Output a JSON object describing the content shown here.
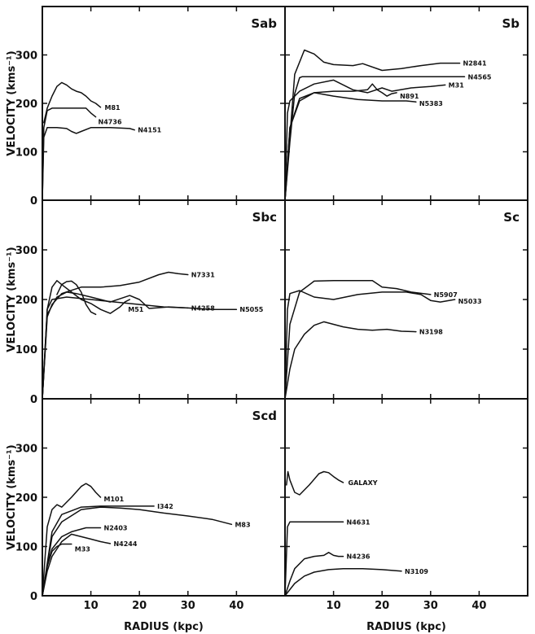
{
  "chart_data": [
    {
      "type": "line",
      "title": "Sab",
      "xlabel": "",
      "ylabel": "VELOCITY (kms⁻¹)",
      "xlim": [
        0,
        50
      ],
      "ylim": [
        0,
        400
      ],
      "yticks": [
        0,
        100,
        200,
        300
      ],
      "xticks": [],
      "series": [
        {
          "name": "M81",
          "x": [
            0.3,
            1,
            2,
            3,
            4,
            5,
            6,
            7,
            8,
            9,
            10,
            11,
            12
          ],
          "y": [
            160,
            190,
            215,
            235,
            243,
            238,
            230,
            225,
            222,
            215,
            205,
            200,
            192
          ]
        },
        {
          "name": "N4736",
          "x": [
            0,
            0.3,
            1,
            2,
            3,
            6,
            9,
            10,
            11
          ],
          "y": [
            0,
            150,
            185,
            190,
            190,
            190,
            190,
            180,
            172
          ]
        },
        {
          "name": "N4151",
          "x": [
            0,
            0.3,
            1,
            3,
            5,
            6,
            7,
            8,
            10,
            14,
            18,
            19
          ],
          "y": [
            0,
            130,
            150,
            150,
            148,
            142,
            138,
            142,
            150,
            150,
            148,
            145
          ]
        }
      ]
    },
    {
      "type": "line",
      "title": "Sb",
      "xlabel": "",
      "ylabel": "",
      "xlim": [
        0,
        50
      ],
      "ylim": [
        0,
        400
      ],
      "yticks": [
        0,
        100,
        200,
        300
      ],
      "xticks": [],
      "series": [
        {
          "name": "N2841",
          "x": [
            0,
            2,
            4,
            6,
            8,
            10,
            14,
            16,
            20,
            24,
            28,
            32,
            36
          ],
          "y": [
            0,
            260,
            310,
            302,
            285,
            280,
            278,
            282,
            268,
            272,
            278,
            283,
            283
          ]
        },
        {
          "name": "N4565",
          "x": [
            0,
            1,
            2,
            3,
            3.5,
            20,
            37
          ],
          "y": [
            0,
            120,
            220,
            253,
            255,
            255,
            255
          ]
        },
        {
          "name": "M31",
          "x": [
            0,
            0.5,
            1,
            3,
            6,
            10,
            14,
            17,
            20,
            22,
            26,
            30,
            33
          ],
          "y": [
            0,
            180,
            205,
            225,
            240,
            248,
            228,
            222,
            232,
            225,
            232,
            235,
            238
          ]
        },
        {
          "name": "N891",
          "x": [
            0,
            1,
            3,
            6,
            10,
            14,
            17,
            18,
            19,
            20,
            21,
            22,
            23
          ],
          "y": [
            0,
            150,
            205,
            222,
            225,
            225,
            228,
            240,
            228,
            222,
            215,
            220,
            222
          ]
        },
        {
          "name": "N5383",
          "x": [
            0,
            1,
            3,
            6,
            10,
            15,
            20,
            25,
            27
          ],
          "y": [
            0,
            150,
            210,
            222,
            215,
            208,
            205,
            205,
            203
          ]
        }
      ]
    },
    {
      "type": "line",
      "title": "Sbc",
      "xlabel": "",
      "ylabel": "VELOCITY (kms⁻¹)",
      "xlim": [
        0,
        50
      ],
      "ylim": [
        0,
        400
      ],
      "yticks": [
        0,
        100,
        200,
        300
      ],
      "xticks": [],
      "series": [
        {
          "name": "N7331",
          "x": [
            0,
            1,
            2,
            4,
            8,
            12,
            16,
            20,
            24,
            26,
            28,
            30
          ],
          "y": [
            0,
            165,
            190,
            212,
            225,
            225,
            228,
            235,
            250,
            255,
            252,
            250
          ]
        },
        {
          "name": "N4258",
          "x": [
            0,
            1,
            3,
            5,
            7,
            10,
            14,
            18,
            20,
            22,
            26,
            30
          ],
          "y": [
            0,
            170,
            205,
            215,
            212,
            205,
            195,
            208,
            200,
            182,
            185,
            183
          ]
        },
        {
          "name": "N5055",
          "x": [
            0,
            1,
            2,
            5,
            10,
            15,
            20,
            25,
            30,
            35,
            40
          ],
          "y": [
            0,
            180,
            200,
            205,
            200,
            195,
            190,
            185,
            183,
            180,
            180
          ]
        },
        {
          "name": "M51",
          "x": [
            0,
            1,
            2,
            3,
            4,
            6,
            8,
            10,
            12,
            14,
            16,
            17,
            18
          ],
          "y": [
            0,
            180,
            225,
            238,
            230,
            215,
            200,
            192,
            180,
            172,
            185,
            195,
            200
          ]
        },
        {
          "name": "",
          "x": [
            3,
            4,
            5,
            6,
            7,
            8,
            9,
            10,
            11
          ],
          "y": [
            210,
            230,
            236,
            237,
            230,
            215,
            190,
            175,
            170
          ]
        }
      ]
    },
    {
      "type": "line",
      "title": "Sc",
      "xlabel": "",
      "ylabel": "",
      "xlim": [
        0,
        50
      ],
      "ylim": [
        0,
        400
      ],
      "yticks": [
        0,
        100,
        200,
        300
      ],
      "xticks": [],
      "series": [
        {
          "name": "N5907",
          "x": [
            0,
            1,
            3,
            6,
            10,
            14,
            18,
            20,
            23,
            26,
            30
          ],
          "y": [
            0,
            150,
            215,
            237,
            238,
            238,
            238,
            225,
            222,
            215,
            210
          ]
        },
        {
          "name": "N5033",
          "x": [
            0,
            0.5,
            1,
            3,
            6,
            10,
            15,
            20,
            25,
            28,
            30,
            32,
            35
          ],
          "y": [
            0,
            180,
            212,
            218,
            205,
            200,
            210,
            215,
            215,
            210,
            198,
            195,
            200
          ]
        },
        {
          "name": "N3198",
          "x": [
            0,
            1,
            2,
            4,
            6,
            8,
            10,
            12,
            15,
            18,
            21,
            24,
            27
          ],
          "y": [
            0,
            60,
            100,
            130,
            148,
            155,
            150,
            145,
            140,
            138,
            140,
            136,
            135
          ]
        }
      ]
    },
    {
      "type": "line",
      "title": "Scd",
      "xlabel": "RADIUS (kpc)",
      "ylabel": "VELOCITY (kms⁻¹)",
      "xlim": [
        0,
        50
      ],
      "ylim": [
        0,
        400
      ],
      "yticks": [
        0,
        100,
        200,
        300
      ],
      "xticks": [
        10,
        20,
        30,
        40
      ],
      "series": [
        {
          "name": "M101",
          "x": [
            0,
            1,
            2,
            3,
            4,
            6,
            8,
            9,
            10,
            11,
            12
          ],
          "y": [
            0,
            140,
            175,
            185,
            180,
            200,
            222,
            228,
            222,
            210,
            200
          ]
        },
        {
          "name": "I342",
          "x": [
            0,
            2,
            4,
            8,
            12,
            16,
            20,
            23
          ],
          "y": [
            0,
            130,
            165,
            180,
            182,
            182,
            182,
            182
          ]
        },
        {
          "name": "M83",
          "x": [
            0,
            2,
            4,
            8,
            12,
            16,
            20,
            25,
            30,
            35,
            39
          ],
          "y": [
            0,
            120,
            150,
            175,
            180,
            178,
            175,
            168,
            162,
            155,
            145
          ]
        },
        {
          "name": "N2403",
          "x": [
            0,
            1,
            2,
            4,
            6,
            9,
            12
          ],
          "y": [
            0,
            60,
            95,
            120,
            130,
            138,
            138
          ]
        },
        {
          "name": "N4244",
          "x": [
            0,
            1,
            2,
            4,
            6,
            8,
            10,
            12,
            14
          ],
          "y": [
            0,
            50,
            80,
            110,
            125,
            120,
            115,
            110,
            106
          ]
        },
        {
          "name": "M33",
          "x": [
            0,
            1,
            2,
            3,
            4,
            5,
            6
          ],
          "y": [
            0,
            60,
            90,
            100,
            105,
            105,
            105
          ]
        }
      ]
    },
    {
      "type": "line",
      "title": "",
      "xlabel": "RADIUS (kpc)",
      "ylabel": "",
      "xlim": [
        0,
        50
      ],
      "ylim": [
        0,
        400
      ],
      "yticks": [
        0,
        100,
        200,
        300
      ],
      "xticks": [
        10,
        20,
        30,
        40
      ],
      "series": [
        {
          "name": "GALAXY",
          "x": [
            0.3,
            0.6,
            1,
            2,
            3,
            5,
            7,
            8,
            9,
            10,
            11,
            12
          ],
          "y": [
            225,
            252,
            235,
            210,
            205,
            225,
            248,
            252,
            250,
            242,
            235,
            230
          ]
        },
        {
          "name": "N4631",
          "x": [
            0,
            0.5,
            1,
            2,
            4,
            8,
            12
          ],
          "y": [
            0,
            140,
            150,
            150,
            150,
            150,
            150
          ]
        },
        {
          "name": "N4236",
          "x": [
            0,
            1,
            2,
            4,
            6,
            8,
            9,
            10,
            11,
            12
          ],
          "y": [
            0,
            30,
            55,
            75,
            80,
            82,
            88,
            82,
            80,
            80
          ]
        },
        {
          "name": "N3109",
          "x": [
            0,
            2,
            4,
            6,
            9,
            12,
            16,
            20,
            24
          ],
          "y": [
            0,
            25,
            40,
            48,
            53,
            55,
            55,
            53,
            50
          ]
        }
      ]
    }
  ]
}
